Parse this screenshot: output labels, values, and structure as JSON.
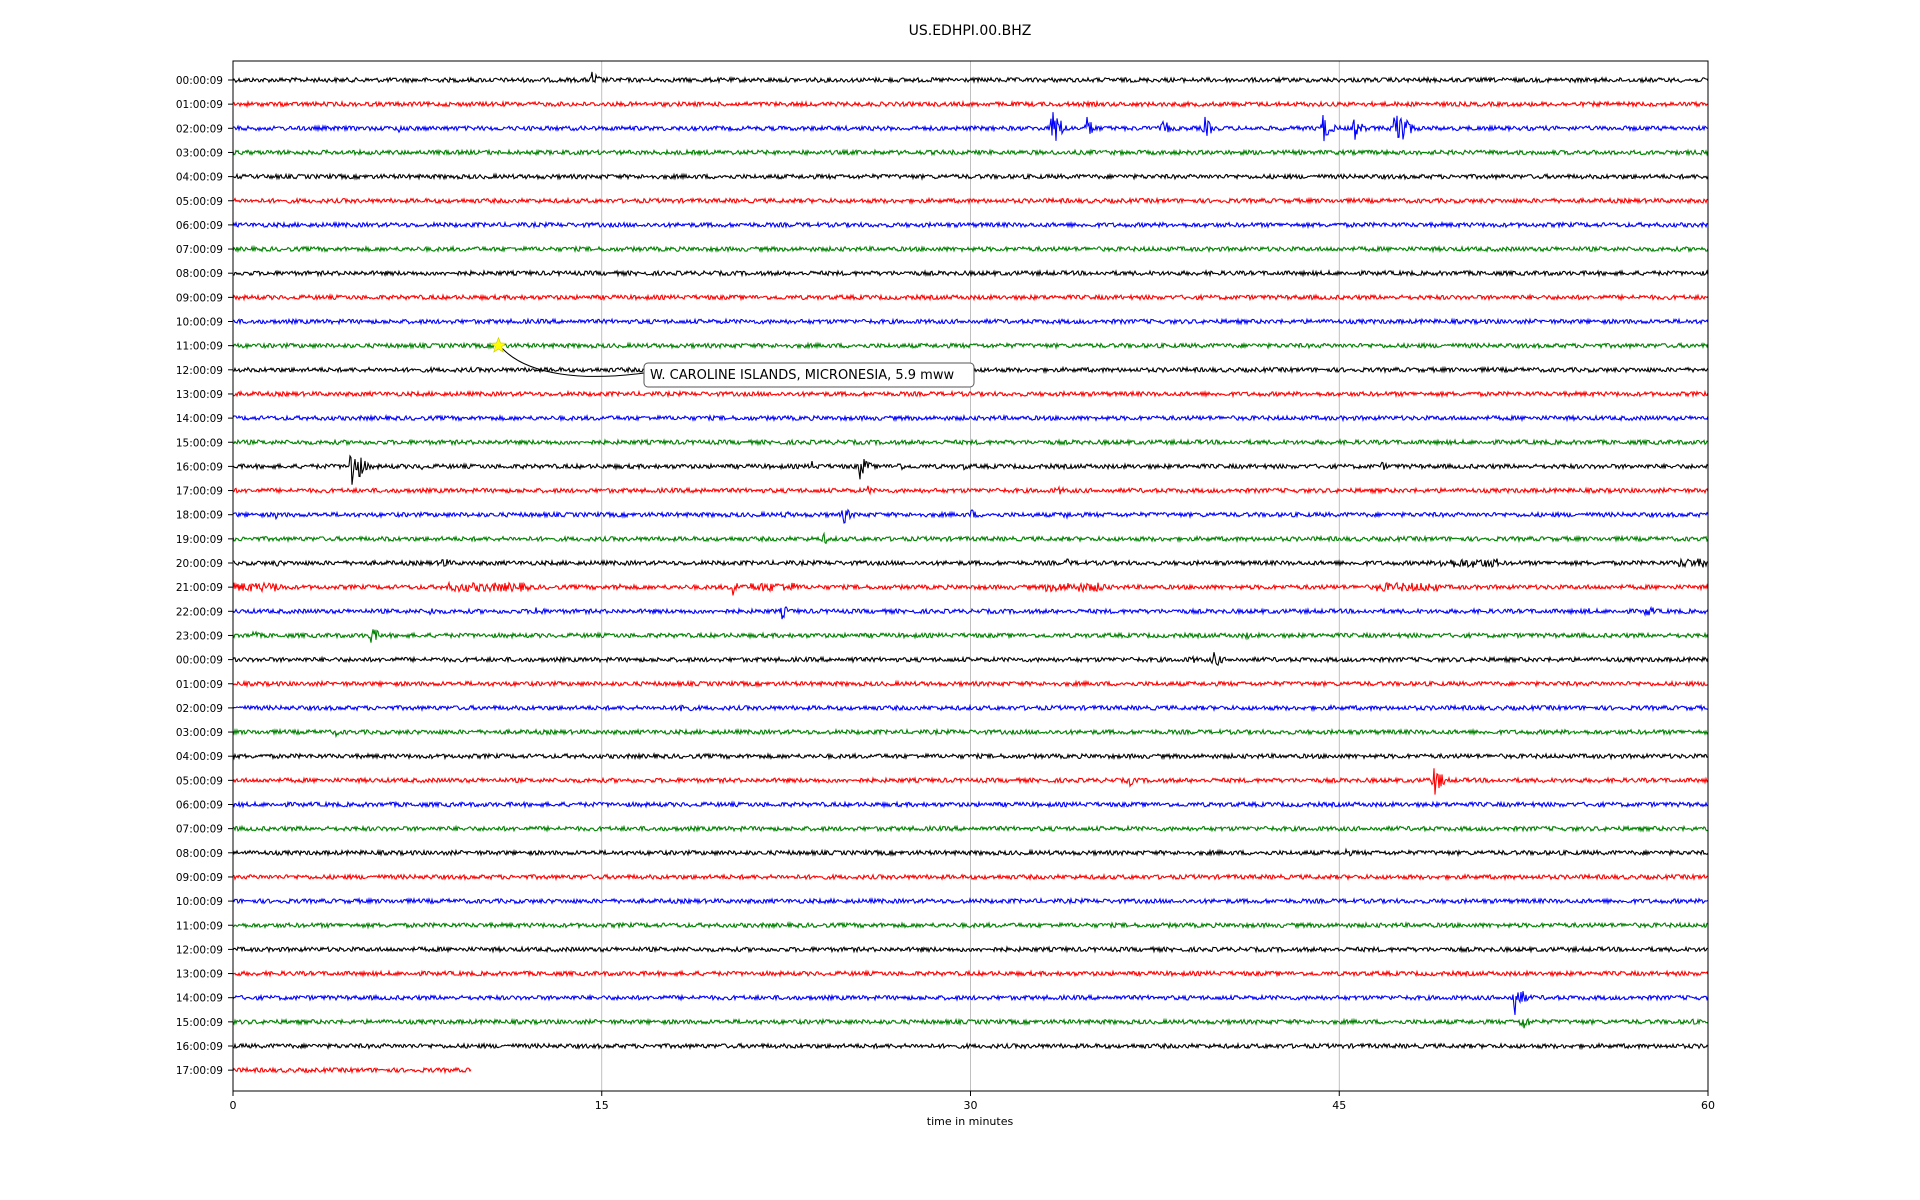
{
  "chart_data": {
    "type": "line",
    "title": "US.EDHPI.00.BHZ",
    "xlabel": "time in minutes",
    "xlim": [
      0,
      60
    ],
    "x_ticks": [
      0,
      15,
      30,
      45,
      60
    ],
    "x_tick_labels": [
      "0",
      "15",
      "30",
      "45",
      "60"
    ],
    "grid": "vertical",
    "trace_colors": [
      "#000000",
      "#ff0000",
      "#0000ff",
      "#008000"
    ],
    "row_labels": [
      "00:00:09",
      "01:00:09",
      "02:00:09",
      "03:00:09",
      "04:00:09",
      "05:00:09",
      "06:00:09",
      "07:00:09",
      "08:00:09",
      "09:00:09",
      "10:00:09",
      "11:00:09",
      "12:00:09",
      "13:00:09",
      "14:00:09",
      "15:00:09",
      "16:00:09",
      "17:00:09",
      "18:00:09",
      "19:00:09",
      "20:00:09",
      "21:00:09",
      "22:00:09",
      "23:00:09",
      "00:00:09",
      "01:00:09",
      "02:00:09",
      "03:00:09",
      "04:00:09",
      "05:00:09",
      "06:00:09",
      "07:00:09",
      "08:00:09",
      "09:00:09",
      "10:00:09",
      "11:00:09",
      "12:00:09",
      "13:00:09",
      "14:00:09",
      "15:00:09",
      "16:00:09",
      "17:00:09"
    ],
    "last_row_end_minute": 9.7,
    "events": [
      {
        "row": 0,
        "minute": 14.6,
        "amp": 0.9
      },
      {
        "row": 2,
        "minute": 6.7,
        "amp": 0.5
      },
      {
        "row": 2,
        "minute": 33.3,
        "amp": 2.6
      },
      {
        "row": 2,
        "minute": 34.7,
        "amp": 1.2
      },
      {
        "row": 2,
        "minute": 37.8,
        "amp": 1.0
      },
      {
        "row": 2,
        "minute": 39.5,
        "amp": 1.2
      },
      {
        "row": 2,
        "minute": 44.3,
        "amp": 1.6
      },
      {
        "row": 2,
        "minute": 45.6,
        "amp": 1.2
      },
      {
        "row": 2,
        "minute": 47.3,
        "amp": 3.6
      },
      {
        "row": 16,
        "minute": 4.8,
        "amp": 3.2
      },
      {
        "row": 16,
        "minute": 7.5,
        "amp": 0.5
      },
      {
        "row": 16,
        "minute": 23.5,
        "amp": 0.6
      },
      {
        "row": 16,
        "minute": 25.5,
        "amp": 1.3
      },
      {
        "row": 16,
        "minute": 27.0,
        "amp": 0.6
      },
      {
        "row": 16,
        "minute": 29.7,
        "amp": 0.4
      },
      {
        "row": 16,
        "minute": 46.7,
        "amp": 0.5
      },
      {
        "row": 17,
        "minute": 19.0,
        "amp": 0.5
      },
      {
        "row": 17,
        "minute": 25.8,
        "amp": 0.5
      },
      {
        "row": 17,
        "minute": 33.5,
        "amp": 0.6
      },
      {
        "row": 18,
        "minute": 1.7,
        "amp": 0.5
      },
      {
        "row": 18,
        "minute": 22.4,
        "amp": 0.5
      },
      {
        "row": 18,
        "minute": 24.8,
        "amp": 1.0
      },
      {
        "row": 18,
        "minute": 30.0,
        "amp": 0.6
      },
      {
        "row": 18,
        "minute": 33.8,
        "amp": 0.5
      },
      {
        "row": 19,
        "minute": 6.2,
        "amp": 0.4
      },
      {
        "row": 19,
        "minute": 24.0,
        "amp": 0.6
      },
      {
        "row": 20,
        "minute": 1.7,
        "amp": 0.5
      },
      {
        "row": 20,
        "minute": 8.5,
        "amp": 0.7
      },
      {
        "row": 20,
        "minute": 33.9,
        "amp": 0.5
      },
      {
        "row": 21,
        "minute": 15.6,
        "amp": 0.6
      },
      {
        "row": 21,
        "minute": 20.3,
        "amp": 1.0
      },
      {
        "row": 22,
        "minute": 8.0,
        "amp": 0.5
      },
      {
        "row": 22,
        "minute": 12.3,
        "amp": 0.7
      },
      {
        "row": 22,
        "minute": 22.3,
        "amp": 0.8
      },
      {
        "row": 22,
        "minute": 55.0,
        "amp": 0.5
      },
      {
        "row": 22,
        "minute": 57.5,
        "amp": 0.8
      },
      {
        "row": 23,
        "minute": 0.8,
        "amp": 0.5
      },
      {
        "row": 23,
        "minute": 5.6,
        "amp": 1.0
      },
      {
        "row": 23,
        "minute": 41.2,
        "amp": 0.4
      },
      {
        "row": 24,
        "minute": 25.1,
        "amp": 0.5
      },
      {
        "row": 24,
        "minute": 38.9,
        "amp": 0.6
      },
      {
        "row": 24,
        "minute": 39.9,
        "amp": 0.9
      },
      {
        "row": 26,
        "minute": 18.2,
        "amp": 1.0
      },
      {
        "row": 27,
        "minute": 4.1,
        "amp": 0.5
      },
      {
        "row": 29,
        "minute": 36.4,
        "amp": 0.7
      },
      {
        "row": 29,
        "minute": 48.8,
        "amp": 1.9
      },
      {
        "row": 32,
        "minute": 45.2,
        "amp": 0.6
      },
      {
        "row": 38,
        "minute": 52.1,
        "amp": 2.0
      },
      {
        "row": 39,
        "minute": 52.4,
        "amp": 1.0
      },
      {
        "row": 39,
        "minute": 59.2,
        "amp": 0.5
      }
    ],
    "noisy_segments": [
      {
        "row": 20,
        "start": 49.0,
        "end": 51.5
      },
      {
        "row": 20,
        "start": 58.8,
        "end": 60.0
      },
      {
        "row": 21,
        "start": 0.0,
        "end": 2.0
      },
      {
        "row": 21,
        "start": 8.7,
        "end": 12.0
      },
      {
        "row": 21,
        "start": 21.0,
        "end": 23.0
      },
      {
        "row": 21,
        "start": 33.0,
        "end": 35.5
      },
      {
        "row": 21,
        "start": 46.5,
        "end": 49.0
      }
    ],
    "annotation": {
      "text": "W. CAROLINE ISLANDS, MICRONESIA, 5.9 mww",
      "row": 11,
      "minute": 10.8,
      "marker": "star",
      "marker_color": "#ffff00"
    }
  }
}
